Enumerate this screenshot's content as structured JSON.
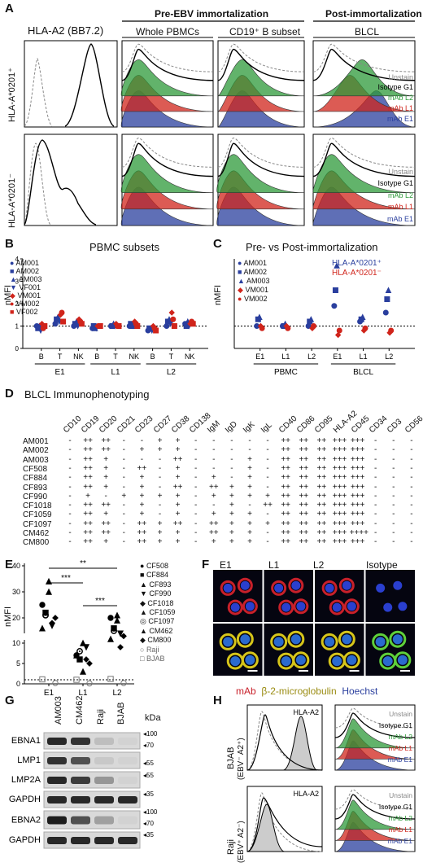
{
  "panels": {
    "A": "A",
    "B": "B",
    "C": "C",
    "D": "D",
    "E": "E",
    "F": "F",
    "G": "G",
    "H": "H"
  },
  "A": {
    "title_marker": "HLA-A2 (BB7.2)",
    "group_pre": "Pre-EBV immortalization",
    "group_post": "Post-immortalization",
    "col_pbmc": "Whole PBMCs",
    "col_cd19": "CD19⁺ B subset",
    "col_blcl": "BLCL",
    "row1": "HLA-A*0201⁺",
    "row2": "HLA-A*0201⁻",
    "legend": [
      "Unstain",
      "Isotype G1",
      "mAb L2",
      "mAb L1",
      "mAb E1"
    ]
  },
  "B": {
    "title": "PBMC subsets",
    "ylabel": "nMFI",
    "yticks": [
      "0",
      "1",
      "2",
      "3",
      "4"
    ],
    "xticks": [
      "B",
      "T",
      "NK",
      "B",
      "T",
      "NK",
      "B",
      "T",
      "NK"
    ],
    "groups": [
      "E1",
      "L1",
      "L2"
    ],
    "legend": [
      "AM001",
      "AM002",
      "AM003",
      "VF001",
      "VM001",
      "VM002",
      "VF002"
    ]
  },
  "C": {
    "title": "Pre- vs Post-immortalization",
    "ylabel": "nMFI",
    "xticks": [
      "E1",
      "L1",
      "L2",
      "E1",
      "L1",
      "L2"
    ],
    "groups": [
      "PBMC",
      "BLCL"
    ],
    "legend": [
      "AM001",
      "AM002",
      "AM003",
      "VM001",
      "VM002"
    ],
    "legend2": [
      "HLA-A*0201⁺",
      "HLA-A*0201⁻"
    ]
  },
  "D": {
    "title": "BLCL Immunophenotyping",
    "markers": [
      "CD10",
      "CD19",
      "CD20",
      "CD21",
      "CD23",
      "CD27",
      "CD38",
      "CD138",
      "IgM",
      "IgD",
      "IgK",
      "IgL",
      "CD40",
      "CD86",
      "CD95",
      "HLA-A2",
      "CD45",
      "CD34",
      "CD3",
      "CD56"
    ],
    "rows": [
      {
        "name": "AM001",
        "vals": [
          "-",
          "++",
          "++",
          "-",
          "-",
          "+",
          "+",
          "-",
          "-",
          "-",
          "-",
          "-",
          "++",
          "++",
          "++",
          "+++",
          "+++",
          "-",
          "-",
          "-"
        ]
      },
      {
        "name": "AM002",
        "vals": [
          "-",
          "++",
          "++",
          "-",
          "+",
          "+",
          "+",
          "-",
          "-",
          "-",
          "-",
          "-",
          "++",
          "++",
          "++",
          "+++",
          "+++",
          "-",
          "-",
          "-"
        ]
      },
      {
        "name": "AM003",
        "vals": [
          "-",
          "++",
          "+",
          "-",
          "-",
          "-",
          "++",
          "-",
          "-",
          "-",
          "+",
          "-",
          "++",
          "++",
          "++",
          "+++",
          "+++",
          "-",
          "-",
          "-"
        ]
      },
      {
        "name": "CF508",
        "vals": [
          "-",
          "++",
          "+",
          "-",
          "++",
          "-",
          "+",
          "-",
          "-",
          "-",
          "+",
          "-",
          "++",
          "++",
          "++",
          "+++",
          "+++",
          "-",
          "-",
          "-"
        ]
      },
      {
        "name": "CF884",
        "vals": [
          "-",
          "++",
          "+",
          "-",
          "+",
          "-",
          "+",
          "-",
          "+",
          "-",
          "+",
          "-",
          "++",
          "++",
          "++",
          "+++",
          "+++",
          "-",
          "-",
          "-"
        ]
      },
      {
        "name": "CF893",
        "vals": [
          "-",
          "++",
          "+",
          "-",
          "+",
          "-",
          "++",
          "-",
          "++",
          "+",
          "+",
          "-",
          "++",
          "++",
          "++",
          "+++",
          "+++",
          "-",
          "-",
          "-"
        ]
      },
      {
        "name": "CF990",
        "vals": [
          "-",
          "+",
          "-",
          "+",
          "+",
          "+",
          "+",
          "-",
          "+",
          "+",
          "+",
          "+",
          "++",
          "++",
          "++",
          "+++",
          "+++",
          "-",
          "-",
          "-"
        ]
      },
      {
        "name": "CF1018",
        "vals": [
          "-",
          "++",
          "++",
          "-",
          "+",
          "-",
          "+",
          "-",
          "-",
          "+",
          "-",
          "++",
          "++",
          "++",
          "++",
          "+++",
          "+++",
          "-",
          "-",
          "-"
        ]
      },
      {
        "name": "CF1059",
        "vals": [
          "-",
          "++",
          "+",
          "-",
          "+",
          "-",
          "+",
          "-",
          "+",
          "+",
          "+",
          "-",
          "++",
          "++",
          "++",
          "+++",
          "+++",
          "-",
          "-",
          "-"
        ]
      },
      {
        "name": "CF1097",
        "vals": [
          "-",
          "++",
          "++",
          "-",
          "++",
          "+",
          "++",
          "-",
          "++",
          "+",
          "+",
          "+",
          "++",
          "++",
          "++",
          "+++",
          "+++",
          "-",
          "-",
          "-"
        ]
      },
      {
        "name": "CM462",
        "vals": [
          "-",
          "++",
          "++",
          "-",
          "++",
          "+",
          "+",
          "-",
          "++",
          "+",
          "+",
          "-",
          "++",
          "++",
          "++",
          "+++",
          "++++",
          "-",
          "-",
          "-"
        ]
      },
      {
        "name": "CM800",
        "vals": [
          "-",
          "++",
          "+",
          "-",
          "++",
          "+",
          "+",
          "-",
          "+",
          "+",
          "+",
          "-",
          "++",
          "++",
          "++",
          "+++",
          "+++",
          "-",
          "-",
          "-"
        ]
      }
    ]
  },
  "E": {
    "ylabel": "nMFI",
    "yticks_low": [
      "0",
      "5",
      "10"
    ],
    "yticks_high": [
      "20",
      "30",
      "40"
    ],
    "xticks": [
      "E1",
      "L1",
      "L2"
    ],
    "sig": [
      "***",
      "**",
      "***"
    ],
    "legend": [
      "CF508",
      "CF884",
      "CF893",
      "CF990",
      "CF1018",
      "CF1059",
      "CF1097",
      "CM462",
      "CM800",
      "Raji",
      "BJAB"
    ]
  },
  "F": {
    "cols": [
      "E1",
      "L1",
      "L2",
      "Isotype"
    ],
    "legend": [
      "mAb",
      "β-2-microglobulin",
      "Hoechst"
    ]
  },
  "G": {
    "lanes": [
      "AM003",
      "CM462",
      "Raji",
      "BJAB"
    ],
    "kda": "kDa",
    "bands": [
      "EBNA1",
      "LMP1",
      "LMP2A",
      "GAPDH",
      "EBNA2",
      "GAPDH"
    ],
    "mw": [
      "100",
      "70",
      "55",
      "55",
      "35",
      "100",
      "70",
      "35"
    ]
  },
  "H": {
    "row1": "BJAB",
    "row1_sub": "(EBV⁻ A2⁺)",
    "row2": "Raji",
    "row2_sub": "(EBV⁺ A2⁻)",
    "marker": "HLA-A2",
    "legend": [
      "Unstain",
      "Isotype G1",
      "mAb L2",
      "mAb L1",
      "mAb E1"
    ]
  },
  "chart_data": [
    {
      "panel": "B",
      "type": "scatter",
      "title": "PBMC subsets",
      "ylabel": "nMFI",
      "ylim": [
        0,
        4
      ],
      "categories": [
        "E1-B",
        "E1-T",
        "E1-NK",
        "L1-B",
        "L1-T",
        "L1-NK",
        "L2-B",
        "L2-T",
        "L2-NK"
      ],
      "series": [
        {
          "name": "AM001",
          "values": [
            1.0,
            1.1,
            1.0,
            0.9,
            1.0,
            1.0,
            0.8,
            1.0,
            1.1
          ]
        },
        {
          "name": "AM002",
          "values": [
            0.9,
            1.3,
            1.1,
            1.0,
            1.0,
            1.1,
            0.9,
            1.2,
            1.0
          ]
        },
        {
          "name": "AM003",
          "values": [
            1.0,
            1.4,
            1.2,
            0.9,
            1.1,
            1.0,
            0.9,
            1.3,
            1.2
          ]
        },
        {
          "name": "VF001",
          "values": [
            0.8,
            1.2,
            1.0,
            0.9,
            1.0,
            1.0,
            0.8,
            1.1,
            1.0
          ]
        },
        {
          "name": "VM001",
          "values": [
            1.1,
            1.5,
            1.3,
            1.0,
            1.1,
            1.2,
            1.0,
            1.6,
            1.1
          ]
        },
        {
          "name": "VM002",
          "values": [
            0.9,
            1.6,
            1.2,
            1.0,
            1.0,
            1.1,
            0.9,
            1.3,
            1.2
          ]
        },
        {
          "name": "VF002",
          "values": [
            1.0,
            1.2,
            1.1,
            1.0,
            1.0,
            1.0,
            0.8,
            1.0,
            1.1
          ]
        }
      ]
    },
    {
      "panel": "C",
      "type": "scatter",
      "title": "Pre- vs Post-immortalization",
      "ylabel": "nMFI",
      "ylim": [
        0,
        4
      ],
      "categories": [
        "PBMC-E1",
        "PBMC-L1",
        "PBMC-L2",
        "BLCL-E1",
        "BLCL-L1",
        "BLCL-L2"
      ],
      "series": [
        {
          "name": "AM001",
          "values": [
            1.0,
            1.0,
            1.0,
            1.9,
            1.2,
            1.6
          ]
        },
        {
          "name": "AM002",
          "values": [
            1.3,
            1.0,
            1.2,
            2.6,
            1.3,
            2.2
          ]
        },
        {
          "name": "AM003",
          "values": [
            1.4,
            1.1,
            1.3,
            3.7,
            1.4,
            2.6
          ]
        },
        {
          "name": "VM001",
          "values": [
            1.0,
            1.0,
            0.9,
            0.6,
            0.8,
            0.7
          ]
        },
        {
          "name": "VM002",
          "values": [
            0.9,
            0.9,
            1.0,
            0.8,
            0.9,
            0.8
          ]
        }
      ]
    },
    {
      "panel": "E",
      "type": "scatter",
      "ylabel": "nMFI",
      "categories": [
        "E1",
        "L1",
        "L2"
      ],
      "series": [
        {
          "name": "CF508",
          "values": [
            25,
            7,
            20
          ]
        },
        {
          "name": "CF884",
          "values": [
            22,
            6,
            16
          ]
        },
        {
          "name": "CF893",
          "values": [
            30,
            3,
            19
          ]
        },
        {
          "name": "CF990",
          "values": [
            17,
            9,
            14
          ]
        },
        {
          "name": "CF1018",
          "values": [
            20,
            5,
            13
          ]
        },
        {
          "name": "CF1059",
          "values": [
            16,
            7,
            11
          ]
        },
        {
          "name": "CF1097",
          "values": [
            21,
            8,
            15
          ]
        },
        {
          "name": "CM462",
          "values": [
            34,
            10,
            21
          ]
        },
        {
          "name": "CM800",
          "values": [
            18,
            6,
            9
          ]
        },
        {
          "name": "Raji",
          "values": [
            0.2,
            0.1,
            0.2
          ]
        },
        {
          "name": "BJAB",
          "values": [
            1.1,
            1.0,
            1.2
          ]
        }
      ]
    }
  ]
}
